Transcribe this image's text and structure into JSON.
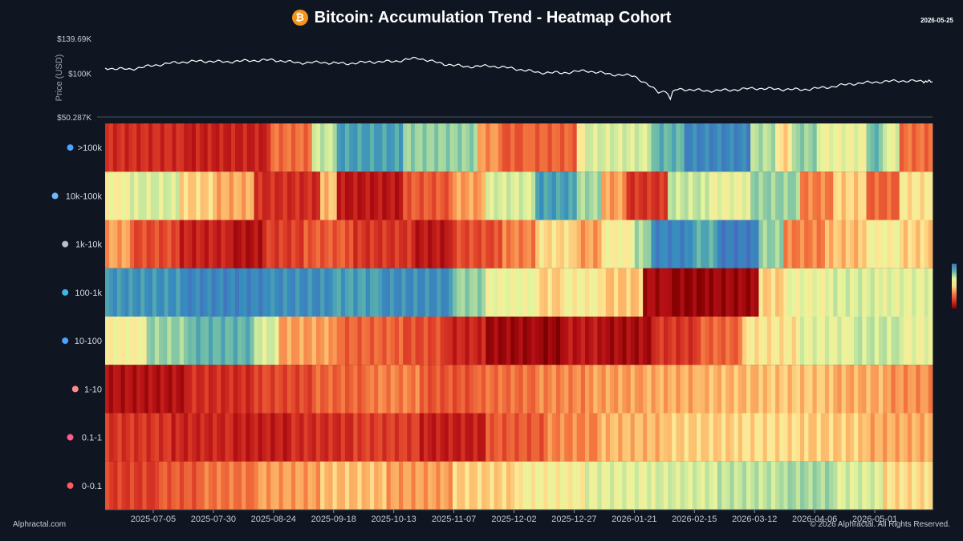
{
  "header": {
    "title": "Bitcoin: Accumulation Trend - Heatmap Cohort",
    "date": "2026-05-25",
    "icon": "bitcoin-icon"
  },
  "footer": {
    "brand": "Alphractal.com",
    "copyright": "© 2026 Alphractal. All Rights Reserved."
  },
  "colors": {
    "background": "#0f1521",
    "price_line": "#ffffff",
    "scale_low": "#7f0000",
    "scale_mid": "#fdf5a4",
    "scale_high": "#3b78c4"
  },
  "chart_data": [
    {
      "type": "line",
      "name": "price",
      "ylabel": "Price (USD)",
      "y_ticks": [
        "$139.69K",
        "$100K",
        "$50.287K"
      ],
      "ylim": [
        50287,
        139690
      ],
      "x": [
        "2025-06-15",
        "2025-06-25",
        "2025-07-05",
        "2025-07-15",
        "2025-07-25",
        "2025-08-04",
        "2025-08-14",
        "2025-08-24",
        "2025-09-03",
        "2025-09-13",
        "2025-09-23",
        "2025-10-03",
        "2025-10-13",
        "2025-10-23",
        "2025-11-02",
        "2025-11-12",
        "2025-11-22",
        "2025-12-02",
        "2025-12-12",
        "2025-12-22",
        "2026-01-01",
        "2026-01-11",
        "2026-01-21",
        "2026-01-31",
        "2026-02-10",
        "2026-02-20",
        "2026-03-02",
        "2026-03-12",
        "2026-03-22",
        "2026-04-01",
        "2026-04-11",
        "2026-04-21",
        "2026-05-01",
        "2026-05-11",
        "2026-05-21",
        "2026-05-25"
      ],
      "values": [
        106000,
        104500,
        109000,
        112500,
        114000,
        113000,
        114500,
        115200,
        112000,
        112500,
        111000,
        113000,
        113500,
        117500,
        111000,
        107500,
        108500,
        105500,
        101000,
        100500,
        103000,
        99000,
        97000,
        79000,
        82000,
        80000,
        81000,
        83000,
        82000,
        81500,
        84000,
        88000,
        90000,
        91500,
        91000,
        90500
      ]
    },
    {
      "type": "heatmap",
      "name": "cohort-accumulation",
      "x_ticks": [
        "2025-07-05",
        "2025-07-30",
        "2025-08-24",
        "2025-09-18",
        "2025-10-13",
        "2025-11-07",
        "2025-12-02",
        "2025-12-27",
        "2026-01-21",
        "2026-02-15",
        "2026-03-12",
        "2026-04-06",
        "2026-05-01"
      ],
      "x_start": "2025-06-15",
      "x_end": "2026-05-25",
      "rows": [
        {
          "label": ">100k",
          "icon": "whale-icon",
          "segments": [
            [
              0.0,
              0.1,
              0.18
            ],
            [
              0.1,
              0.2,
              0.15
            ],
            [
              0.2,
              0.25,
              0.32
            ],
            [
              0.25,
              0.28,
              0.65
            ],
            [
              0.28,
              0.36,
              0.85
            ],
            [
              0.36,
              0.45,
              0.72
            ],
            [
              0.45,
              0.48,
              0.38
            ],
            [
              0.48,
              0.51,
              0.28
            ],
            [
              0.51,
              0.57,
              0.3
            ],
            [
              0.57,
              0.58,
              0.55
            ],
            [
              0.58,
              0.66,
              0.62
            ],
            [
              0.66,
              0.7,
              0.8
            ],
            [
              0.7,
              0.78,
              0.92
            ],
            [
              0.78,
              0.81,
              0.68
            ],
            [
              0.81,
              0.83,
              0.5
            ],
            [
              0.83,
              0.86,
              0.72
            ],
            [
              0.86,
              0.92,
              0.58
            ],
            [
              0.92,
              0.94,
              0.78
            ],
            [
              0.94,
              0.96,
              0.6
            ],
            [
              0.96,
              1.0,
              0.32
            ]
          ]
        },
        {
          "label": "10k-100k",
          "icon": "humpback-icon",
          "segments": [
            [
              0.0,
              0.03,
              0.55
            ],
            [
              0.03,
              0.09,
              0.62
            ],
            [
              0.09,
              0.13,
              0.48
            ],
            [
              0.13,
              0.18,
              0.42
            ],
            [
              0.18,
              0.26,
              0.18
            ],
            [
              0.26,
              0.28,
              0.45
            ],
            [
              0.28,
              0.36,
              0.12
            ],
            [
              0.36,
              0.42,
              0.28
            ],
            [
              0.42,
              0.46,
              0.4
            ],
            [
              0.46,
              0.52,
              0.62
            ],
            [
              0.52,
              0.57,
              0.85
            ],
            [
              0.57,
              0.6,
              0.7
            ],
            [
              0.6,
              0.63,
              0.4
            ],
            [
              0.63,
              0.68,
              0.2
            ],
            [
              0.68,
              0.73,
              0.65
            ],
            [
              0.73,
              0.78,
              0.58
            ],
            [
              0.78,
              0.84,
              0.72
            ],
            [
              0.84,
              0.88,
              0.35
            ],
            [
              0.88,
              0.92,
              0.48
            ],
            [
              0.92,
              0.96,
              0.3
            ],
            [
              0.96,
              1.0,
              0.52
            ]
          ]
        },
        {
          "label": "1k-10k",
          "icon": "shark-icon",
          "segments": [
            [
              0.0,
              0.03,
              0.4
            ],
            [
              0.03,
              0.09,
              0.25
            ],
            [
              0.09,
              0.15,
              0.15
            ],
            [
              0.15,
              0.19,
              0.1
            ],
            [
              0.19,
              0.24,
              0.22
            ],
            [
              0.24,
              0.3,
              0.28
            ],
            [
              0.3,
              0.37,
              0.2
            ],
            [
              0.37,
              0.42,
              0.12
            ],
            [
              0.42,
              0.48,
              0.25
            ],
            [
              0.48,
              0.52,
              0.35
            ],
            [
              0.52,
              0.57,
              0.5
            ],
            [
              0.57,
              0.6,
              0.4
            ],
            [
              0.6,
              0.64,
              0.55
            ],
            [
              0.64,
              0.66,
              0.7
            ],
            [
              0.66,
              0.71,
              0.92
            ],
            [
              0.71,
              0.74,
              0.82
            ],
            [
              0.74,
              0.79,
              0.95
            ],
            [
              0.79,
              0.82,
              0.72
            ],
            [
              0.82,
              0.87,
              0.35
            ],
            [
              0.87,
              0.92,
              0.45
            ],
            [
              0.92,
              0.96,
              0.55
            ],
            [
              0.96,
              1.0,
              0.48
            ]
          ]
        },
        {
          "label": "100-1k",
          "icon": "fish-icon",
          "segments": [
            [
              0.0,
              0.1,
              0.88
            ],
            [
              0.1,
              0.2,
              0.92
            ],
            [
              0.2,
              0.27,
              0.9
            ],
            [
              0.27,
              0.33,
              0.85
            ],
            [
              0.33,
              0.42,
              0.9
            ],
            [
              0.42,
              0.46,
              0.72
            ],
            [
              0.46,
              0.52,
              0.58
            ],
            [
              0.52,
              0.55,
              0.48
            ],
            [
              0.55,
              0.6,
              0.55
            ],
            [
              0.6,
              0.65,
              0.46
            ],
            [
              0.65,
              0.68,
              0.08
            ],
            [
              0.68,
              0.73,
              0.04
            ],
            [
              0.73,
              0.79,
              0.06
            ],
            [
              0.79,
              0.82,
              0.48
            ],
            [
              0.82,
              0.88,
              0.58
            ],
            [
              0.88,
              0.94,
              0.62
            ],
            [
              0.94,
              1.0,
              0.6
            ]
          ]
        },
        {
          "label": "10-100",
          "icon": "crab-fish-icon",
          "segments": [
            [
              0.0,
              0.05,
              0.55
            ],
            [
              0.05,
              0.1,
              0.72
            ],
            [
              0.1,
              0.18,
              0.8
            ],
            [
              0.18,
              0.21,
              0.62
            ],
            [
              0.21,
              0.28,
              0.4
            ],
            [
              0.28,
              0.36,
              0.3
            ],
            [
              0.36,
              0.41,
              0.25
            ],
            [
              0.41,
              0.46,
              0.16
            ],
            [
              0.46,
              0.52,
              0.06
            ],
            [
              0.52,
              0.55,
              0.04
            ],
            [
              0.55,
              0.6,
              0.12
            ],
            [
              0.6,
              0.66,
              0.08
            ],
            [
              0.66,
              0.72,
              0.2
            ],
            [
              0.72,
              0.77,
              0.3
            ],
            [
              0.77,
              0.84,
              0.52
            ],
            [
              0.84,
              0.9,
              0.6
            ],
            [
              0.9,
              0.96,
              0.65
            ],
            [
              0.96,
              1.0,
              0.58
            ]
          ]
        },
        {
          "label": "1-10",
          "icon": "shrimp-icon",
          "segments": [
            [
              0.0,
              0.1,
              0.1
            ],
            [
              0.1,
              0.18,
              0.18
            ],
            [
              0.18,
              0.25,
              0.24
            ],
            [
              0.25,
              0.32,
              0.3
            ],
            [
              0.32,
              0.38,
              0.35
            ],
            [
              0.38,
              0.45,
              0.27
            ],
            [
              0.45,
              0.52,
              0.32
            ],
            [
              0.52,
              0.58,
              0.36
            ],
            [
              0.58,
              0.65,
              0.4
            ],
            [
              0.65,
              0.72,
              0.42
            ],
            [
              0.72,
              0.8,
              0.44
            ],
            [
              0.8,
              0.88,
              0.46
            ],
            [
              0.88,
              0.94,
              0.42
            ],
            [
              0.94,
              1.0,
              0.38
            ]
          ]
        },
        {
          "label": "0.1-1",
          "icon": "crab-icon",
          "segments": [
            [
              0.0,
              0.08,
              0.2
            ],
            [
              0.08,
              0.15,
              0.16
            ],
            [
              0.15,
              0.22,
              0.14
            ],
            [
              0.22,
              0.3,
              0.18
            ],
            [
              0.3,
              0.38,
              0.22
            ],
            [
              0.38,
              0.46,
              0.14
            ],
            [
              0.46,
              0.53,
              0.28
            ],
            [
              0.53,
              0.6,
              0.36
            ],
            [
              0.6,
              0.68,
              0.44
            ],
            [
              0.68,
              0.76,
              0.48
            ],
            [
              0.76,
              0.84,
              0.5
            ],
            [
              0.84,
              0.92,
              0.47
            ],
            [
              0.92,
              1.0,
              0.42
            ]
          ]
        },
        {
          "label": "0-0.1",
          "icon": "plankton-icon",
          "segments": [
            [
              0.0,
              0.06,
              0.22
            ],
            [
              0.06,
              0.12,
              0.28
            ],
            [
              0.12,
              0.18,
              0.33
            ],
            [
              0.18,
              0.26,
              0.4
            ],
            [
              0.26,
              0.34,
              0.45
            ],
            [
              0.34,
              0.42,
              0.4
            ],
            [
              0.42,
              0.5,
              0.48
            ],
            [
              0.5,
              0.58,
              0.55
            ],
            [
              0.58,
              0.66,
              0.6
            ],
            [
              0.66,
              0.74,
              0.62
            ],
            [
              0.74,
              0.82,
              0.66
            ],
            [
              0.82,
              0.88,
              0.7
            ],
            [
              0.88,
              0.94,
              0.62
            ],
            [
              0.94,
              1.0,
              0.5
            ]
          ]
        }
      ]
    }
  ]
}
